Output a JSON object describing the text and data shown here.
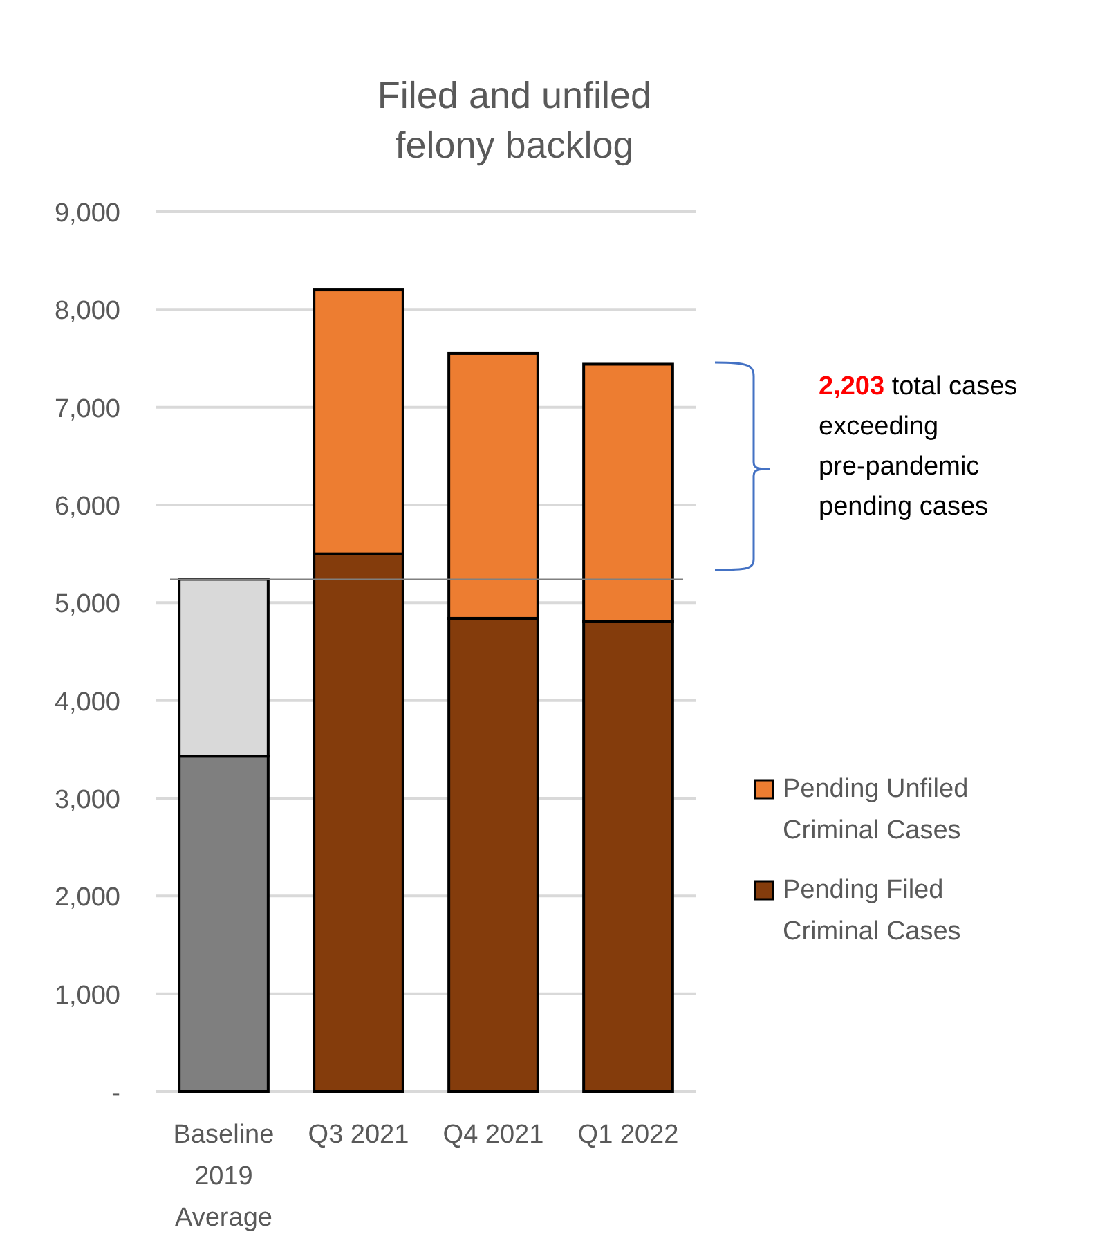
{
  "chart_data": {
    "type": "bar",
    "title": "Filed and unfiled felony backlog",
    "stacked": true,
    "categories": [
      "Baseline 2019 Average",
      "Q3 2021",
      "Q4 2021",
      "Q1 2022"
    ],
    "series": [
      {
        "name": "Pending Filed Criminal Cases",
        "color": "#843c0c",
        "colors": [
          "#7f7f7f",
          "#843c0c",
          "#843c0c",
          "#843c0c"
        ],
        "values": [
          3430,
          5500,
          4840,
          4810
        ]
      },
      {
        "name": "Pending Unfiled Criminal Cases",
        "color": "#ed7d31",
        "colors": [
          "#d9d9d9",
          "#ed7d31",
          "#ed7d31",
          "#ed7d31"
        ],
        "values": [
          1810,
          2700,
          2710,
          2630
        ]
      }
    ],
    "ylim": [
      0,
      9000
    ],
    "yticks": [
      {
        "value": 0,
        "label": "-"
      },
      {
        "value": 1000,
        "label": "1,000"
      },
      {
        "value": 2000,
        "label": "2,000"
      },
      {
        "value": 3000,
        "label": "3,000"
      },
      {
        "value": 4000,
        "label": "4,000"
      },
      {
        "value": 5000,
        "label": "5,000"
      },
      {
        "value": 6000,
        "label": "6,000"
      },
      {
        "value": 7000,
        "label": "7,000"
      },
      {
        "value": 8000,
        "label": "8,000"
      },
      {
        "value": 9000,
        "label": "9,000"
      }
    ],
    "grid": "y",
    "legend": "right",
    "ref_lines": [
      {
        "axis": "y",
        "value": 5240,
        "color": "#808080"
      }
    ],
    "annotations": [
      "2,203 total cases exceeding pre-pandemic pending cases"
    ]
  }
}
